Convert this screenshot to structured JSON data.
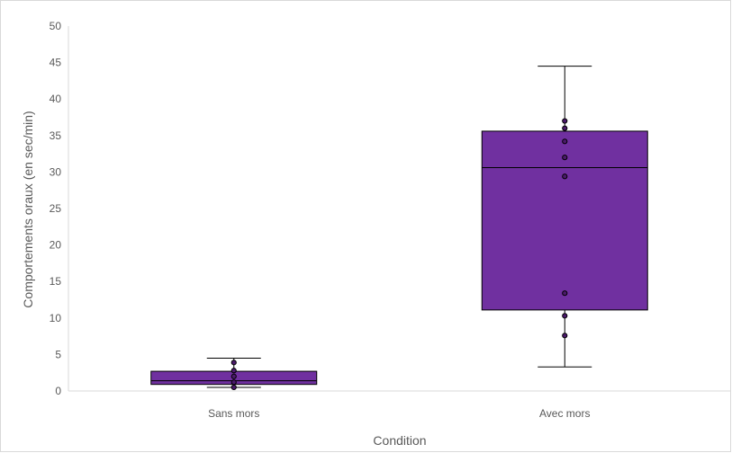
{
  "chart_data": {
    "type": "box",
    "xlabel": "Condition",
    "ylabel": "Comportements oraux (en sec/min)",
    "ylim": [
      0,
      50
    ],
    "yticks": [
      0,
      5,
      10,
      15,
      20,
      25,
      30,
      35,
      40,
      45,
      50
    ],
    "grid": false,
    "box_color": "#7030a0",
    "point_color": "#4b1a6b",
    "categories": [
      {
        "label": "Sans mors",
        "min": 0.5,
        "q1": 0.9,
        "median": 1.4,
        "q3": 2.7,
        "max": 4.5,
        "points": [
          0.5,
          1.2,
          2.0,
          2.8,
          3.9
        ]
      },
      {
        "label": "Avec mors",
        "min": 3.3,
        "q1": 11.1,
        "median": 30.6,
        "q3": 35.6,
        "max": 44.5,
        "points": [
          7.6,
          10.3,
          13.4,
          29.4,
          32.0,
          34.2,
          36.0,
          37.0
        ]
      }
    ]
  }
}
